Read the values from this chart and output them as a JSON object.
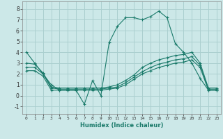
{
  "xlabel": "Humidex (Indice chaleur)",
  "background_color": "#cce8e8",
  "grid_color": "#aacfcf",
  "line_color": "#1a7a6a",
  "xlim": [
    -0.5,
    23.5
  ],
  "ylim": [
    -1.7,
    8.7
  ],
  "xticks": [
    0,
    1,
    2,
    3,
    4,
    5,
    6,
    7,
    8,
    9,
    10,
    11,
    12,
    13,
    14,
    15,
    16,
    17,
    18,
    19,
    20,
    21,
    22,
    23
  ],
  "yticks": [
    -1,
    0,
    1,
    2,
    3,
    4,
    5,
    6,
    7,
    8
  ],
  "series": [
    {
      "x": [
        0,
        1,
        2,
        3,
        4,
        5,
        6,
        7,
        8,
        9,
        10,
        11,
        12,
        13,
        14,
        15,
        16,
        17,
        18,
        19,
        20,
        21,
        22,
        23
      ],
      "y": [
        4.0,
        3.0,
        2.0,
        1.0,
        0.5,
        0.5,
        0.5,
        -0.8,
        1.4,
        0.0,
        4.9,
        6.4,
        7.2,
        7.2,
        7.0,
        7.3,
        7.8,
        7.2,
        4.8,
        4.0,
        3.0,
        1.6,
        0.5,
        0.5
      ]
    },
    {
      "x": [
        0,
        1,
        2,
        3,
        4,
        5,
        6,
        7,
        8,
        9,
        10,
        11,
        12,
        13,
        14,
        15,
        16,
        17,
        18,
        19,
        20,
        21,
        22,
        23
      ],
      "y": [
        3.0,
        2.9,
        2.1,
        0.8,
        0.7,
        0.7,
        0.7,
        0.7,
        0.7,
        0.7,
        0.8,
        1.0,
        1.4,
        1.9,
        2.6,
        3.0,
        3.3,
        3.5,
        3.7,
        3.8,
        4.0,
        3.0,
        0.7,
        0.7
      ]
    },
    {
      "x": [
        0,
        1,
        2,
        3,
        4,
        5,
        6,
        7,
        8,
        9,
        10,
        11,
        12,
        13,
        14,
        15,
        16,
        17,
        18,
        19,
        20,
        21,
        22,
        23
      ],
      "y": [
        2.6,
        2.6,
        2.0,
        0.7,
        0.6,
        0.6,
        0.6,
        0.6,
        0.6,
        0.6,
        0.7,
        0.8,
        1.2,
        1.7,
        2.2,
        2.6,
        2.9,
        3.1,
        3.3,
        3.4,
        3.6,
        2.8,
        0.6,
        0.6
      ]
    },
    {
      "x": [
        0,
        1,
        2,
        3,
        4,
        5,
        6,
        7,
        8,
        9,
        10,
        11,
        12,
        13,
        14,
        15,
        16,
        17,
        18,
        19,
        20,
        21,
        22,
        23
      ],
      "y": [
        2.3,
        2.3,
        1.8,
        0.5,
        0.5,
        0.5,
        0.5,
        0.5,
        0.5,
        0.5,
        0.6,
        0.7,
        1.0,
        1.5,
        2.0,
        2.3,
        2.6,
        2.8,
        3.0,
        3.1,
        3.3,
        2.6,
        0.5,
        0.5
      ]
    }
  ]
}
